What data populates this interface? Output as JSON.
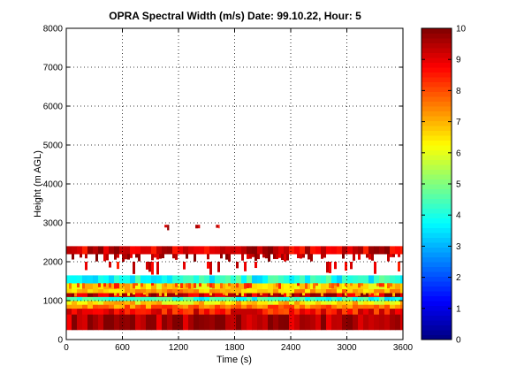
{
  "chart_data": {
    "type": "heatmap",
    "title": "OPRA Spectral Width (m/s)  Date: 99.10.22, Hour: 5",
    "xlabel": "Time (s)",
    "ylabel": "Height (m AGL)",
    "xlim": [
      0,
      3600
    ],
    "ylim": [
      0,
      8000
    ],
    "x_ticks": [
      "0",
      "600",
      "1200",
      "1800",
      "2400",
      "3000",
      "3600"
    ],
    "y_ticks": [
      "0",
      "1000",
      "2000",
      "3000",
      "4000",
      "5000",
      "6000",
      "7000",
      "8000"
    ],
    "grid": true,
    "colormap": "jet",
    "clim": [
      0,
      10
    ],
    "colorbar_ticks": [
      "0",
      "1",
      "2",
      "3",
      "4",
      "5",
      "6",
      "7",
      "8",
      "9",
      "10"
    ],
    "bands": [
      {
        "y_from": 250,
        "y_to": 650,
        "value": 9.6
      },
      {
        "y_from": 650,
        "y_to": 800,
        "value": 8.7
      },
      {
        "y_from": 800,
        "y_to": 900,
        "value": 7.6
      },
      {
        "y_from": 900,
        "y_to": 1000,
        "value": 6.6
      },
      {
        "y_from": 1000,
        "y_to": 1100,
        "value": 4.1
      },
      {
        "y_from": 1100,
        "y_to": 1200,
        "value": 9.3
      },
      {
        "y_from": 1200,
        "y_to": 1300,
        "value": 7.1
      },
      {
        "y_from": 1300,
        "y_to": 1450,
        "value": 6.5
      },
      {
        "y_from": 1450,
        "y_to": 1650,
        "value": 4.0
      },
      {
        "y_from": 2200,
        "y_to": 2400,
        "value": 9.2
      }
    ],
    "patches": [
      {
        "x_from": 0,
        "x_to": 3600,
        "y_from": 2000,
        "y_to": 2200,
        "value": 9.5,
        "coverage": 0.45
      },
      {
        "x_from": 0,
        "x_to": 3600,
        "y_from": 1650,
        "y_to": 2000,
        "value": 9.0,
        "coverage": 0.12
      },
      {
        "x_from": 0,
        "x_to": 3600,
        "y_from": 1100,
        "y_to": 1200,
        "value": 7.0,
        "coverage": 0.3
      },
      {
        "x_from": 0,
        "x_to": 3600,
        "y_from": 1300,
        "y_to": 1450,
        "value": 8.0,
        "coverage": 0.3
      },
      {
        "x_from": 1050,
        "x_to": 1100,
        "y_from": 2800,
        "y_to": 2950,
        "value": 9.5,
        "coverage": 1
      },
      {
        "x_from": 1380,
        "x_to": 1430,
        "y_from": 2850,
        "y_to": 2950,
        "value": 9.0,
        "coverage": 1
      },
      {
        "x_from": 1600,
        "x_to": 1640,
        "y_from": 2850,
        "y_to": 2950,
        "value": 9.0,
        "coverage": 1
      }
    ]
  }
}
